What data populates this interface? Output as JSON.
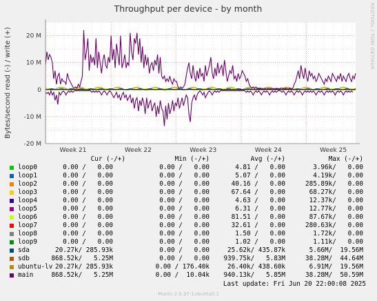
{
  "chart_data": {
    "type": "line",
    "title": "Throughput per device - by month",
    "ylabel": "Bytes/second read (-) / write (+)",
    "ylim": [
      -20000000,
      25000000
    ],
    "yticks": [
      {
        "v": 20000000,
        "label": "20 M"
      },
      {
        "v": 10000000,
        "label": "10 M"
      },
      {
        "v": 0,
        "label": "0"
      },
      {
        "v": -10000000,
        "label": "-10 M"
      },
      {
        "v": -20000000,
        "label": "-20 M"
      }
    ],
    "xticks": [
      "Week 21",
      "Week 22",
      "Week 23",
      "Week 24",
      "Week 25"
    ],
    "grid": true,
    "series": [
      {
        "name": "main",
        "color": "#660066",
        "write": [
          9,
          14,
          11,
          13,
          12,
          10,
          4,
          7,
          2,
          5,
          6,
          2,
          4,
          3,
          3,
          2,
          6,
          4,
          3,
          2,
          1,
          0.5,
          1,
          0.5,
          2,
          1,
          3,
          5,
          22,
          11,
          14,
          19,
          7,
          13,
          10,
          12,
          9,
          19,
          8,
          14,
          10,
          6,
          11,
          13,
          9,
          8,
          12,
          10,
          20,
          11,
          15,
          8,
          17,
          13,
          9,
          20,
          8,
          10,
          13,
          8,
          10,
          9,
          21,
          14,
          11,
          19,
          17,
          21,
          13,
          19,
          10,
          16,
          8,
          13,
          9,
          12,
          6,
          9,
          10,
          7,
          11,
          9,
          13,
          6,
          12,
          5,
          4,
          5,
          3,
          4,
          3,
          5,
          3,
          2,
          4,
          3,
          3,
          1,
          0.5,
          1,
          0.5,
          1,
          2,
          5,
          8,
          10,
          6,
          4,
          9,
          5,
          3,
          7,
          4,
          8,
          5,
          6,
          3,
          9,
          5,
          7,
          9,
          12,
          6,
          4,
          8,
          5,
          10,
          6,
          8,
          9,
          5,
          11,
          7,
          3,
          5,
          7,
          6,
          9,
          4,
          5,
          3,
          6,
          4,
          5,
          7,
          6,
          5,
          3,
          4,
          2,
          1,
          0.5,
          1,
          0.5,
          1,
          0.5,
          0.5,
          0.5,
          0.5,
          0.3,
          0.5,
          0.3,
          0.2,
          0.5,
          0.3,
          0.5,
          0.3,
          0.4,
          0.3,
          0.5,
          0.4,
          0.3,
          0.5,
          0.6,
          0.3,
          0.4,
          0.5,
          0.3,
          0.2,
          0.5,
          0.3,
          0.4,
          2,
          3,
          5,
          7,
          4,
          9,
          6,
          4,
          8,
          5,
          3,
          7,
          5,
          6,
          4,
          5,
          3,
          4,
          6,
          5,
          4,
          3,
          2,
          4,
          3,
          5,
          4,
          3,
          6,
          5,
          4,
          3,
          5,
          4,
          6,
          3,
          5,
          4,
          3,
          5,
          6,
          4,
          3,
          5,
          4,
          6
        ],
        "read": [
          -1,
          -1.5,
          -1,
          -2,
          -0.5,
          -2,
          -1,
          -4,
          -2,
          -5.5,
          -1,
          -2,
          -1,
          -0.5,
          -1,
          -2,
          -1,
          -0.5,
          -1,
          -0.5,
          -1,
          -0.5,
          -0.3,
          -0.5,
          -0.3,
          -0.5,
          -0.3,
          -0.5,
          -0.3,
          -0.5,
          -0.3,
          -0.5,
          -0.3,
          -0.5,
          -1,
          -0.5,
          -1,
          -0.5,
          -1,
          -0.5,
          -1,
          -2,
          -1,
          -0.5,
          -1,
          -2,
          -1,
          -0.5,
          -1,
          -2,
          -3,
          -2,
          -1,
          -3,
          -2,
          -4,
          -2,
          -1,
          -3,
          -2,
          -4,
          -3,
          -2,
          -5,
          -3,
          -7,
          -4,
          -3,
          -8,
          -4,
          -6,
          -3,
          -5,
          -9,
          -3,
          -7,
          -5,
          -4,
          -8,
          -6,
          -5,
          -10,
          -6,
          -9,
          -4,
          -7,
          -8,
          -13.5,
          -6,
          -11,
          -5,
          -9,
          -7,
          -4,
          -8,
          -5,
          -6,
          -3,
          -7,
          -5,
          -3,
          -6,
          -4,
          -2,
          -3,
          -9,
          -12,
          -5,
          -3,
          -2,
          -4,
          -2,
          -1,
          -0.5,
          -1,
          -2,
          -1,
          -3,
          -2,
          -1,
          -0.5,
          -1,
          -2,
          -1,
          -0.5,
          -1,
          -0.5,
          -1,
          -0.5,
          -0.3,
          -0.5,
          -0.3,
          -0.5,
          -0.3,
          -0.5,
          -0.3,
          -0.5,
          -0.3,
          -0.5,
          -0.3,
          -0.5,
          -0.3,
          -0.5,
          -0.3,
          -0.5,
          -0.3,
          -0.5,
          -1,
          -0.5,
          -1,
          -0.5,
          -1,
          -2,
          -1,
          -0.5,
          -1,
          -0.5,
          -1,
          -2,
          -1,
          -0.5,
          -1,
          -0.5,
          -1,
          -2,
          -1,
          -0.5,
          -1,
          -0.5,
          -1,
          -0.5,
          -0.3,
          -0.5,
          -1,
          -0.5,
          -1,
          -2,
          -1,
          -0.5,
          -1,
          -0.5,
          -1,
          -2,
          -1,
          -0.5,
          -1,
          -0.5,
          -1,
          -2,
          -1,
          -0.5,
          -1,
          -0.5,
          -1,
          -0.5,
          -1,
          -0.5,
          -1,
          -2,
          -1,
          -0.5,
          -1,
          -0.5,
          -1,
          -2,
          -1,
          -0.5,
          -1,
          -0.5,
          -1,
          -0.5,
          -1,
          -2,
          -1,
          -0.5,
          -1,
          -0.5,
          -1,
          -2,
          -1,
          -0.5,
          -1,
          -0.5,
          -1,
          -0.5,
          -1
        ]
      }
    ]
  },
  "table": {
    "headers": {
      "cur": "Cur (-/+)",
      "min": "Min (-/+)",
      "avg": "Avg (-/+)",
      "max": "Max (-/+)"
    },
    "rows": [
      {
        "name": "loop0",
        "color": "#00cc00",
        "cur": "0.00 /   0.00",
        "min": "0.00 /   0.00",
        "avg": "4.81 /   0.00",
        "max": "3.96k/   0.00"
      },
      {
        "name": "loop1",
        "color": "#0066b3",
        "cur": "0.00 /   0.00",
        "min": "0.00 /   0.00",
        "avg": "5.07 /   0.00",
        "max": "4.19k/   0.00"
      },
      {
        "name": "loop2",
        "color": "#ff8000",
        "cur": "0.00 /   0.00",
        "min": "0.00 /   0.00",
        "avg": "40.16 /   0.00",
        "max": "285.89k/   0.00"
      },
      {
        "name": "loop3",
        "color": "#ffcc00",
        "cur": "0.00 /   0.00",
        "min": "0.00 /   0.00",
        "avg": "67.64 /   0.00",
        "max": "68.27k/   0.00"
      },
      {
        "name": "loop4",
        "color": "#330099",
        "cur": "0.00 /   0.00",
        "min": "0.00 /   0.00",
        "avg": "4.63 /   0.00",
        "max": "12.37k/   0.00"
      },
      {
        "name": "loop5",
        "color": "#990099",
        "cur": "0.00 /   0.00",
        "min": "0.00 /   0.00",
        "avg": "6.31 /   0.00",
        "max": "12.77k/   0.00"
      },
      {
        "name": "loop6",
        "color": "#ccff00",
        "cur": "0.00 /   0.00",
        "min": "0.00 /   0.00",
        "avg": "81.51 /   0.00",
        "max": "87.67k/   0.00"
      },
      {
        "name": "loop7",
        "color": "#ff0000",
        "cur": "0.00 /   0.00",
        "min": "0.00 /   0.00",
        "avg": "32.61 /   0.00",
        "max": "280.63k/   0.00"
      },
      {
        "name": "loop8",
        "color": "#808080",
        "cur": "0.00 /   0.00",
        "min": "0.00 /   0.00",
        "avg": "1.50 /   0.00",
        "max": "1.72k/   0.00"
      },
      {
        "name": "loop9",
        "color": "#008f00",
        "cur": "0.00 /   0.00",
        "min": "0.00 /   0.00",
        "avg": "1.02 /   0.00",
        "max": "1.11k/   0.00"
      },
      {
        "name": "sda",
        "color": "#00487d",
        "cur": "20.27k/ 285.93k",
        "min": "0.00 /   0.00",
        "avg": "25.62k/ 435.87k",
        "max": "5.66M/  19.56M"
      },
      {
        "name": "sdb",
        "color": "#b35a00",
        "cur": "868.52k/   5.25M",
        "min": "0.00 /   0.00",
        "avg": "939.75k/   5.83M",
        "max": "38.28M/  44.64M"
      },
      {
        "name": "ubuntu-lv",
        "color": "#b38f00",
        "cur": "20.27k/ 285.93k",
        "min": "0.00 / 176.40k",
        "avg": "26.40k/ 438.60k",
        "max": "6.91M/  19.56M"
      },
      {
        "name": "main",
        "color": "#6b006b",
        "cur": "868.52k/   5.25M",
        "min": "0.00 /  10.04k",
        "avg": "940.13k/   5.85M",
        "max": "38.28M/  50.59M"
      }
    ]
  },
  "last_update": "Last update: Fri Jun 20 22:00:08 2025",
  "footer": "Munin 2.0.37-1ubuntu0.1",
  "side_label": "RRDTOOL / TOBI OETIKER"
}
